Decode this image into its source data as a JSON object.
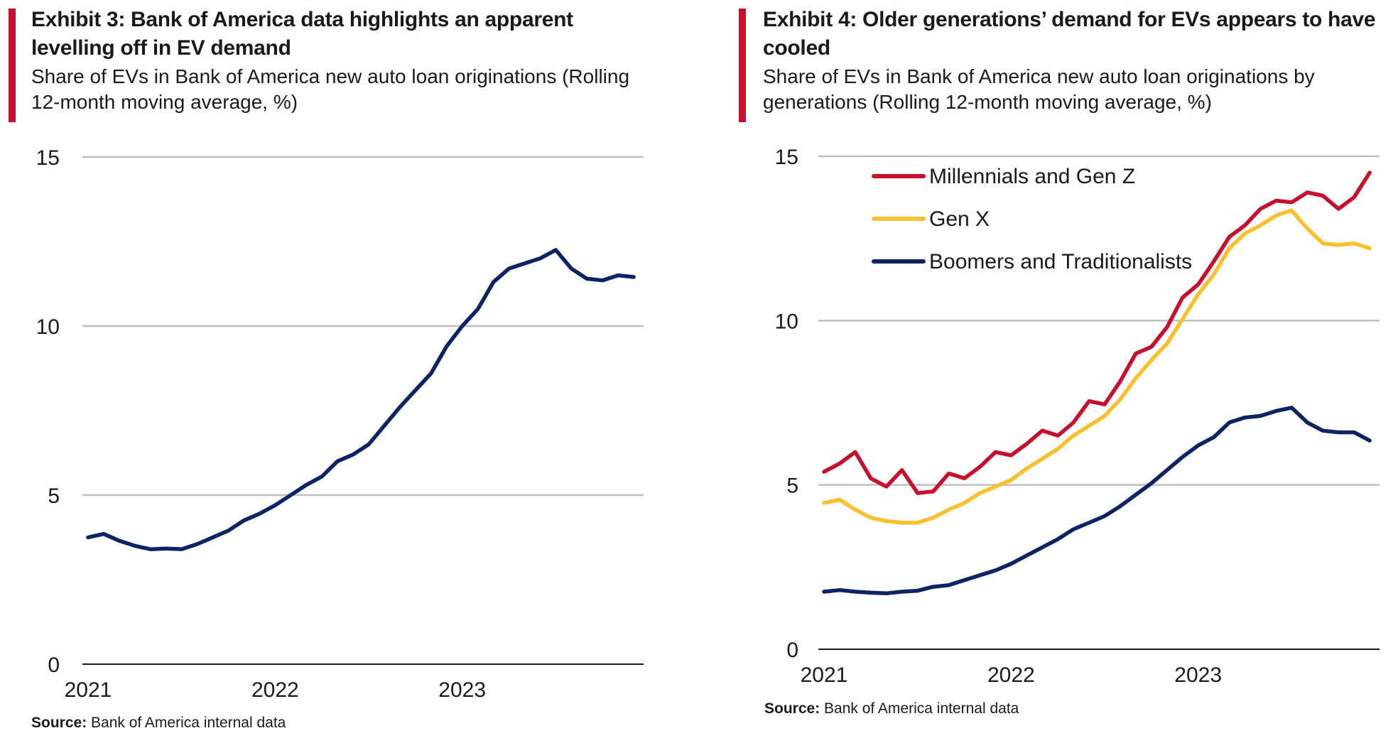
{
  "colors": {
    "accent": "#c8102e",
    "gridline": "#bfbfbf",
    "axis": "#1a1a1a"
  },
  "left": {
    "title": "Exhibit 3: Bank of America data highlights an apparent levelling off in EV demand",
    "subtitle": "Share of EVs in Bank of America new auto loan originations (Rolling 12-month moving average, %)",
    "source_label": "Source:",
    "source_text": "Bank of America internal data"
  },
  "right": {
    "title": "Exhibit 4: Older generations’ demand for EVs appears to have cooled",
    "subtitle": "Share of EVs in Bank of America new auto loan originations by generations (Rolling 12-month moving average, %)",
    "source_label": "Source:",
    "source_text": "Bank of America internal data"
  },
  "chart_data": [
    {
      "type": "line",
      "title": "Exhibit 3: Bank of America data highlights an apparent levelling off in EV demand",
      "ylim": [
        0,
        15
      ],
      "yticks": [
        0,
        5,
        10,
        15
      ],
      "xticks": [
        "2021",
        "2022",
        "2023"
      ],
      "grid": true,
      "start": "2021-01",
      "series": [
        {
          "color": "#0c2466",
          "values": [
            3.75,
            3.85,
            3.65,
            3.5,
            3.4,
            3.42,
            3.4,
            3.55,
            3.75,
            3.95,
            4.25,
            4.45,
            4.7,
            5.0,
            5.3,
            5.55,
            6.0,
            6.2,
            6.5,
            7.05,
            7.6,
            8.1,
            8.6,
            9.4,
            10.0,
            10.5,
            11.3,
            11.7,
            11.85,
            12.0,
            12.25,
            11.7,
            11.4,
            11.35,
            11.5,
            11.45
          ]
        }
      ]
    },
    {
      "type": "line",
      "title": "Exhibit 4: Older generations’ demand for EVs appears to have cooled",
      "ylim": [
        0,
        15
      ],
      "yticks": [
        0,
        5,
        10,
        15
      ],
      "xticks": [
        "2021",
        "2022",
        "2023"
      ],
      "grid": true,
      "legend_position": "top-left",
      "start": "2021-01",
      "series": [
        {
          "name": "Millennials and Gen Z",
          "color": "#c8102e",
          "values": [
            5.4,
            5.65,
            6.0,
            5.2,
            4.95,
            5.45,
            4.75,
            4.8,
            5.35,
            5.2,
            5.55,
            6.0,
            5.9,
            6.25,
            6.65,
            6.5,
            6.9,
            7.55,
            7.45,
            8.15,
            9.0,
            9.2,
            9.8,
            10.7,
            11.1,
            11.8,
            12.55,
            12.9,
            13.4,
            13.65,
            13.6,
            13.9,
            13.8,
            13.4,
            13.75,
            14.5
          ]
        },
        {
          "name": "Gen X",
          "color": "#fbc02d",
          "values": [
            4.45,
            4.55,
            4.25,
            4.0,
            3.9,
            3.85,
            3.85,
            4.0,
            4.25,
            4.45,
            4.75,
            4.95,
            5.15,
            5.5,
            5.8,
            6.1,
            6.5,
            6.8,
            7.1,
            7.6,
            8.25,
            8.8,
            9.3,
            10.05,
            10.8,
            11.4,
            12.2,
            12.65,
            12.9,
            13.2,
            13.35,
            12.8,
            12.35,
            12.3,
            12.35,
            12.2
          ]
        },
        {
          "name": "Boomers and Traditionalists",
          "color": "#0c2466",
          "values": [
            1.75,
            1.8,
            1.75,
            1.72,
            1.7,
            1.75,
            1.78,
            1.9,
            1.95,
            2.1,
            2.25,
            2.4,
            2.6,
            2.85,
            3.1,
            3.35,
            3.65,
            3.85,
            4.05,
            4.35,
            4.7,
            5.05,
            5.45,
            5.85,
            6.2,
            6.45,
            6.9,
            7.05,
            7.1,
            7.25,
            7.35,
            6.9,
            6.65,
            6.6,
            6.6,
            6.35
          ]
        }
      ]
    }
  ]
}
